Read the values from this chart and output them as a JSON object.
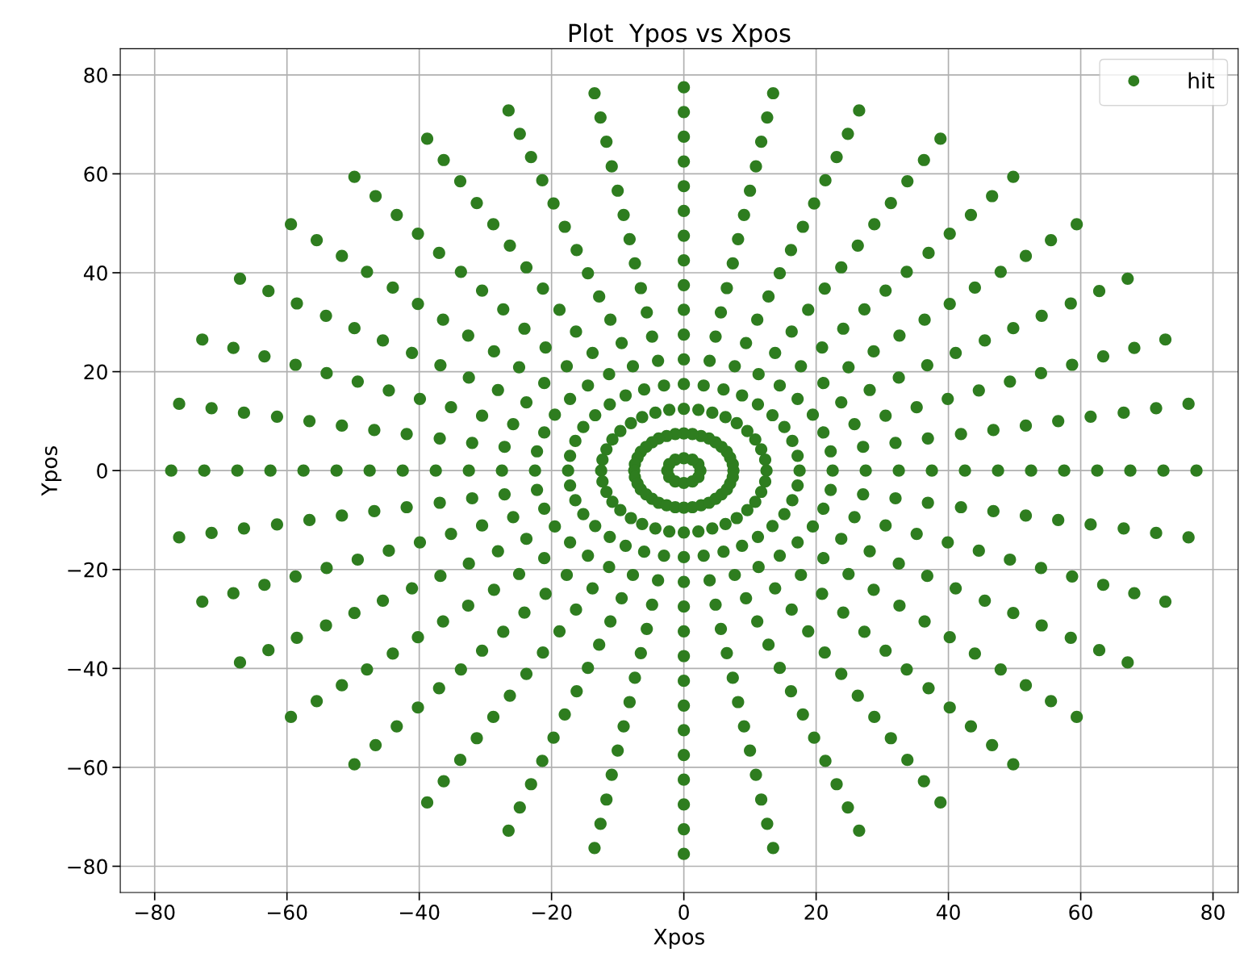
{
  "chart_data": {
    "type": "scatter",
    "title": "Plot  Ypos vs Xpos",
    "xlabel": "Xpos",
    "ylabel": "Ypos",
    "xlim": [
      -85.2,
      83.8
    ],
    "ylim": [
      -85.3,
      85.3
    ],
    "xticks": [
      -80,
      -60,
      -40,
      -20,
      0,
      20,
      40,
      60,
      80
    ],
    "yticks": [
      -80,
      -60,
      -40,
      -20,
      0,
      20,
      40,
      60,
      80
    ],
    "grid": true,
    "legend": "top right",
    "marker": "circle",
    "series": [
      {
        "name": "hit",
        "color": "#2e7d1f",
        "x": [
          2.5,
          2.2,
          1.3,
          0,
          -1.3,
          -2.2,
          -2.5,
          -2.2,
          -1.3,
          0,
          1.3,
          2.2,
          7.5,
          7.4,
          7.0,
          6.5,
          5.7,
          4.8,
          3.8,
          2.6,
          1.3,
          0,
          -1.3,
          -2.6,
          -3.8,
          -4.8,
          -5.7,
          -6.5,
          -7.0,
          -7.4,
          -7.5,
          -7.4,
          -7.0,
          -6.5,
          -5.7,
          -4.8,
          -3.8,
          -2.6,
          -1.3,
          0,
          1.3,
          2.6,
          3.8,
          4.8,
          5.7,
          6.5,
          7.0,
          7.4,
          12.5,
          12.3,
          11.7,
          10.8,
          9.6,
          8.0,
          6.3,
          4.3,
          2.2,
          0,
          -2.2,
          -4.3,
          -6.3,
          -8.0,
          -9.6,
          -10.8,
          -11.7,
          -12.3,
          -12.5,
          -12.3,
          -11.7,
          -10.8,
          -9.6,
          -8.0,
          -6.3,
          -4.3,
          -2.2,
          0,
          2.2,
          4.3,
          6.3,
          8.0,
          9.6,
          10.8,
          11.7,
          12.3,
          17.5,
          17.2,
          16.4,
          15.2,
          13.4,
          11.2,
          8.8,
          6.0,
          3.0,
          0,
          -3.0,
          -6.0,
          -8.8,
          -11.2,
          -13.4,
          -15.2,
          -16.4,
          -17.2,
          -17.5,
          -17.2,
          -16.4,
          -15.2,
          -13.4,
          -11.2,
          -8.8,
          -6.0,
          -3.0,
          0,
          3.0,
          6.0,
          8.8,
          11.2,
          13.4,
          15.2,
          16.4,
          17.2,
          22.5,
          22.2,
          21.1,
          19.5,
          17.2,
          14.5,
          11.3,
          7.7,
          3.9,
          0,
          -3.9,
          -7.7,
          -11.3,
          -14.5,
          -17.2,
          -19.5,
          -21.1,
          -22.2,
          -22.5,
          -22.2,
          -21.1,
          -19.5,
          -17.2,
          -14.5,
          -11.3,
          -7.7,
          -3.9,
          0,
          3.9,
          7.7,
          11.3,
          14.5,
          17.2,
          19.5,
          21.1,
          22.2,
          27.5,
          27.1,
          25.8,
          23.8,
          21.1,
          17.7,
          13.8,
          9.4,
          4.8,
          0,
          -4.8,
          -9.4,
          -13.8,
          -17.7,
          -21.1,
          -23.8,
          -25.8,
          -27.1,
          -27.5,
          -27.1,
          -25.8,
          -23.8,
          -21.1,
          -17.7,
          -13.8,
          -9.4,
          -4.8,
          0,
          4.8,
          9.4,
          13.8,
          17.7,
          21.1,
          23.8,
          25.8,
          27.1,
          32.5,
          32.0,
          30.5,
          28.1,
          24.9,
          20.9,
          16.3,
          11.1,
          5.6,
          0,
          -5.6,
          -11.1,
          -16.3,
          -20.9,
          -24.9,
          -28.1,
          -30.5,
          -32.0,
          -32.5,
          -32.0,
          -30.5,
          -28.1,
          -24.9,
          -20.9,
          -16.3,
          -11.1,
          -5.6,
          0,
          5.6,
          11.1,
          16.3,
          20.9,
          24.9,
          28.1,
          30.5,
          32.0,
          37.5,
          36.9,
          35.2,
          32.5,
          28.7,
          24.1,
          18.8,
          12.8,
          6.5,
          0,
          -6.5,
          -12.8,
          -18.8,
          -24.1,
          -28.7,
          -32.5,
          -35.2,
          -36.9,
          -37.5,
          -36.9,
          -35.2,
          -32.5,
          -28.7,
          -24.1,
          -18.8,
          -12.8,
          -6.5,
          0,
          6.5,
          12.8,
          18.8,
          24.1,
          28.7,
          32.5,
          35.2,
          36.9,
          42.5,
          41.9,
          39.9,
          36.8,
          32.6,
          27.3,
          21.3,
          14.5,
          7.4,
          0,
          -7.4,
          -14.5,
          -21.3,
          -27.3,
          -32.6,
          -36.8,
          -39.9,
          -41.9,
          -42.5,
          -41.9,
          -39.9,
          -36.8,
          -32.6,
          -27.3,
          -21.3,
          -14.5,
          -7.4,
          0,
          7.4,
          14.5,
          21.3,
          27.3,
          32.6,
          36.8,
          39.9,
          41.9,
          47.5,
          46.8,
          44.6,
          41.1,
          36.4,
          30.5,
          23.8,
          16.2,
          8.2,
          0,
          -8.2,
          -16.2,
          -23.8,
          -30.5,
          -36.4,
          -41.1,
          -44.6,
          -46.8,
          -47.5,
          -46.8,
          -44.6,
          -41.1,
          -36.4,
          -30.5,
          -23.8,
          -16.2,
          -8.2,
          0,
          8.2,
          16.2,
          23.8,
          30.5,
          36.4,
          41.1,
          44.6,
          46.8,
          52.5,
          51.7,
          49.3,
          45.5,
          40.2,
          33.7,
          26.3,
          18.0,
          9.1,
          0,
          -9.1,
          -18.0,
          -26.3,
          -33.7,
          -40.2,
          -45.5,
          -49.3,
          -51.7,
          -52.5,
          -51.7,
          -49.3,
          -45.5,
          -40.2,
          -33.7,
          -26.3,
          -18.0,
          -9.1,
          0,
          9.1,
          18.0,
          26.3,
          33.7,
          40.2,
          45.5,
          49.3,
          51.7,
          57.5,
          56.6,
          54.0,
          49.8,
          44.0,
          37.0,
          28.8,
          19.7,
          10.0,
          0,
          -10.0,
          -19.7,
          -28.8,
          -37.0,
          -44.0,
          -49.8,
          -54.0,
          -56.6,
          -57.5,
          -56.6,
          -54.0,
          -49.8,
          -44.0,
          -37.0,
          -28.8,
          -19.7,
          -10.0,
          0,
          10.0,
          19.7,
          28.8,
          37.0,
          44.0,
          49.8,
          54.0,
          56.6,
          62.5,
          61.5,
          58.7,
          54.1,
          47.9,
          40.2,
          31.3,
          21.4,
          10.9,
          0,
          -10.9,
          -21.4,
          -31.3,
          -40.2,
          -47.9,
          -54.1,
          -58.7,
          -61.5,
          -62.5,
          -61.5,
          -58.7,
          -54.1,
          -47.9,
          -40.2,
          -31.3,
          -21.4,
          -10.9,
          0,
          10.9,
          21.4,
          31.3,
          40.2,
          47.9,
          54.1,
          58.7,
          61.5,
          67.5,
          66.5,
          63.4,
          58.5,
          51.7,
          43.4,
          33.8,
          23.1,
          11.7,
          0,
          -11.7,
          -23.1,
          -33.8,
          -43.4,
          -51.7,
          -58.5,
          -63.4,
          -66.5,
          -67.5,
          -66.5,
          -63.4,
          -58.5,
          -51.7,
          -43.4,
          -33.8,
          -23.1,
          -11.7,
          0,
          11.7,
          23.1,
          33.8,
          43.4,
          51.7,
          58.5,
          63.4,
          66.5,
          72.5,
          71.4,
          68.1,
          62.8,
          55.5,
          46.6,
          36.3,
          24.8,
          12.6,
          0,
          -12.6,
          -24.8,
          -36.3,
          -46.6,
          -55.5,
          -62.8,
          -68.1,
          -71.4,
          -72.5,
          -71.4,
          -68.1,
          -62.8,
          -55.5,
          -46.6,
          -36.3,
          -24.8,
          -12.6,
          0,
          12.6,
          24.8,
          36.3,
          46.6,
          55.5,
          62.8,
          68.1,
          71.4,
          77.5,
          76.3,
          72.8,
          67.1,
          59.4,
          49.8,
          38.8,
          26.5,
          13.5,
          0,
          -13.5,
          -26.5,
          -38.8,
          -49.8,
          -59.4,
          -67.1,
          -72.8,
          -76.3,
          -77.5,
          -76.3,
          -72.8,
          -67.1,
          -59.4,
          -49.8,
          -38.8,
          -26.5,
          -13.5,
          0,
          13.5,
          26.5,
          38.8,
          49.8,
          59.4,
          67.1,
          72.8,
          76.3
        ],
        "values": [
          0,
          1.3,
          2.2,
          2.5,
          2.2,
          1.3,
          0,
          -1.3,
          -2.2,
          -2.5,
          -2.2,
          -1.3,
          0,
          1.3,
          2.6,
          3.8,
          4.8,
          5.7,
          6.5,
          7.0,
          7.4,
          7.5,
          7.4,
          7.0,
          6.5,
          5.7,
          4.8,
          3.8,
          2.6,
          1.3,
          0,
          -1.3,
          -2.6,
          -3.8,
          -4.8,
          -5.7,
          -6.5,
          -7.0,
          -7.4,
          -7.5,
          -7.4,
          -7.0,
          -6.5,
          -5.7,
          -4.8,
          -3.8,
          -2.6,
          -1.3,
          0,
          2.2,
          4.3,
          6.3,
          8.0,
          9.6,
          10.8,
          11.7,
          12.3,
          12.5,
          12.3,
          11.7,
          10.8,
          9.6,
          8.0,
          6.3,
          4.3,
          2.2,
          0,
          -2.2,
          -4.3,
          -6.3,
          -8.0,
          -9.6,
          -10.8,
          -11.7,
          -12.3,
          -12.5,
          -12.3,
          -11.7,
          -10.8,
          -9.6,
          -8.0,
          -6.3,
          -4.3,
          -2.2,
          0,
          3.0,
          6.0,
          8.8,
          11.2,
          13.4,
          15.2,
          16.4,
          17.2,
          17.5,
          17.2,
          16.4,
          15.2,
          13.4,
          11.2,
          8.8,
          6.0,
          3.0,
          0,
          -3.0,
          -6.0,
          -8.8,
          -11.2,
          -13.4,
          -15.2,
          -16.4,
          -17.2,
          -17.5,
          -17.2,
          -16.4,
          -15.2,
          -13.4,
          -11.2,
          -8.8,
          -6.0,
          -3.0,
          0,
          3.9,
          7.7,
          11.3,
          14.5,
          17.2,
          19.5,
          21.1,
          22.2,
          22.5,
          22.2,
          21.1,
          19.5,
          17.2,
          14.5,
          11.3,
          7.7,
          3.9,
          0,
          -3.9,
          -7.7,
          -11.3,
          -14.5,
          -17.2,
          -19.5,
          -21.1,
          -22.2,
          -22.5,
          -22.2,
          -21.1,
          -19.5,
          -17.2,
          -14.5,
          -11.3,
          -7.7,
          -3.9,
          0,
          4.8,
          9.4,
          13.8,
          17.7,
          21.1,
          23.8,
          25.8,
          27.1,
          27.5,
          27.1,
          25.8,
          23.8,
          21.1,
          17.7,
          13.8,
          9.4,
          4.8,
          0,
          -4.8,
          -9.4,
          -13.8,
          -17.7,
          -21.1,
          -23.8,
          -25.8,
          -27.1,
          -27.5,
          -27.1,
          -25.8,
          -23.8,
          -21.1,
          -17.7,
          -13.8,
          -9.4,
          -4.8,
          0,
          5.6,
          11.1,
          16.3,
          20.9,
          24.9,
          28.1,
          30.5,
          32.0,
          32.5,
          32.0,
          30.5,
          28.1,
          24.9,
          20.9,
          16.3,
          11.1,
          5.6,
          0,
          -5.6,
          -11.1,
          -16.3,
          -20.9,
          -24.9,
          -28.1,
          -30.5,
          -32.0,
          -32.5,
          -32.0,
          -30.5,
          -28.1,
          -24.9,
          -20.9,
          -16.3,
          -11.1,
          -5.6,
          0,
          6.5,
          12.8,
          18.8,
          24.1,
          28.7,
          32.5,
          35.2,
          36.9,
          37.5,
          36.9,
          35.2,
          32.5,
          28.7,
          24.1,
          18.8,
          12.8,
          6.5,
          0,
          -6.5,
          -12.8,
          -18.8,
          -24.1,
          -28.7,
          -32.5,
          -35.2,
          -36.9,
          -37.5,
          -36.9,
          -35.2,
          -32.5,
          -28.7,
          -24.1,
          -18.8,
          -12.8,
          -6.5,
          0,
          7.4,
          14.5,
          21.3,
          27.3,
          32.6,
          36.8,
          39.9,
          41.9,
          42.5,
          41.9,
          39.9,
          36.8,
          32.6,
          27.3,
          21.3,
          14.5,
          7.4,
          0,
          -7.4,
          -14.5,
          -21.3,
          -27.3,
          -32.6,
          -36.8,
          -39.9,
          -41.9,
          -42.5,
          -41.9,
          -39.9,
          -36.8,
          -32.6,
          -27.3,
          -21.3,
          -14.5,
          -7.4,
          0,
          8.2,
          16.2,
          23.8,
          30.5,
          36.4,
          41.1,
          44.6,
          46.8,
          47.5,
          46.8,
          44.6,
          41.1,
          36.4,
          30.5,
          23.8,
          16.2,
          8.2,
          0,
          -8.2,
          -16.2,
          -23.8,
          -30.5,
          -36.4,
          -41.1,
          -44.6,
          -46.8,
          -47.5,
          -46.8,
          -44.6,
          -41.1,
          -36.4,
          -30.5,
          -23.8,
          -16.2,
          -8.2,
          0,
          9.1,
          18.0,
          26.3,
          33.7,
          40.2,
          45.5,
          49.3,
          51.7,
          52.5,
          51.7,
          49.3,
          45.5,
          40.2,
          33.7,
          26.3,
          18.0,
          9.1,
          0,
          -9.1,
          -18.0,
          -26.3,
          -33.7,
          -40.2,
          -45.5,
          -49.3,
          -51.7,
          -52.5,
          -51.7,
          -49.3,
          -45.5,
          -40.2,
          -33.7,
          -26.3,
          -18.0,
          -9.1,
          0,
          10.0,
          19.7,
          28.8,
          37.0,
          44.0,
          49.8,
          54.0,
          56.6,
          57.5,
          56.6,
          54.0,
          49.8,
          44.0,
          37.0,
          28.8,
          19.7,
          10.0,
          0,
          -10.0,
          -19.7,
          -28.8,
          -37.0,
          -44.0,
          -49.8,
          -54.0,
          -56.6,
          -57.5,
          -56.6,
          -54.0,
          -49.8,
          -44.0,
          -37.0,
          -28.8,
          -19.7,
          -10.0,
          0,
          10.9,
          21.4,
          31.3,
          40.2,
          47.9,
          54.1,
          58.7,
          61.5,
          62.5,
          61.5,
          58.7,
          54.1,
          47.9,
          40.2,
          31.3,
          21.4,
          10.9,
          0,
          -10.9,
          -21.4,
          -31.3,
          -40.2,
          -47.9,
          -54.1,
          -58.7,
          -61.5,
          -62.5,
          -61.5,
          -58.7,
          -54.1,
          -47.9,
          -40.2,
          -31.3,
          -21.4,
          -10.9,
          0,
          11.7,
          23.1,
          33.8,
          43.4,
          51.7,
          58.5,
          63.4,
          66.5,
          67.5,
          66.5,
          63.4,
          58.5,
          51.7,
          43.4,
          33.8,
          23.1,
          11.7,
          0,
          -11.7,
          -23.1,
          -33.8,
          -43.4,
          -51.7,
          -58.5,
          -63.4,
          -66.5,
          -67.5,
          -66.5,
          -63.4,
          -58.5,
          -51.7,
          -43.4,
          -33.8,
          -23.1,
          -11.7,
          0,
          12.6,
          24.8,
          36.3,
          46.6,
          55.5,
          62.8,
          68.1,
          71.4,
          72.5,
          71.4,
          68.1,
          62.8,
          55.5,
          46.6,
          36.3,
          24.8,
          12.6,
          0,
          -12.6,
          -24.8,
          -36.3,
          -46.6,
          -55.5,
          -62.8,
          -68.1,
          -71.4,
          -72.5,
          -71.4,
          -68.1,
          -62.8,
          -55.5,
          -46.6,
          -36.3,
          -24.8,
          -12.6,
          0,
          13.5,
          26.5,
          38.8,
          49.8,
          59.4,
          67.1,
          72.8,
          76.3,
          77.5,
          76.3,
          72.8,
          67.1,
          59.4,
          49.8,
          38.8,
          26.5,
          13.5,
          0,
          -13.5,
          -26.5,
          -38.8,
          -49.8,
          -59.4,
          -67.1,
          -72.8,
          -76.3,
          -77.5,
          -76.3,
          -72.8,
          -67.1,
          -59.4,
          -49.8,
          -38.8,
          -26.5,
          -13.5
        ]
      }
    ]
  }
}
